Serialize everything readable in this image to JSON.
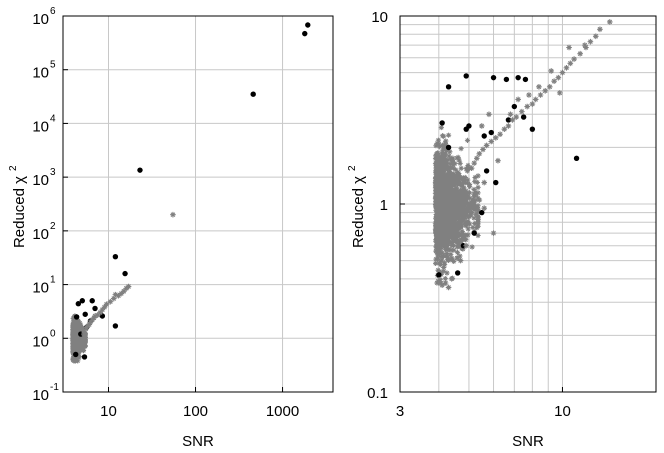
{
  "colors": {
    "dots": "#000000",
    "stars": "#808080",
    "grid": "#c8c8c8",
    "frame": "#000000"
  },
  "chart_data": [
    {
      "type": "scatter",
      "title": "",
      "xlabel": "SNR",
      "ylabel": "Reduced χ",
      "ylabel_superscript": "2",
      "xscale": "log",
      "yscale": "log",
      "xlim": [
        3,
        3800
      ],
      "ylim": [
        0.1,
        1000000
      ],
      "grid": true,
      "xticks": [
        {
          "v": 10,
          "label": "10"
        },
        {
          "v": 100,
          "label": "100"
        },
        {
          "v": 1000,
          "label": "1000"
        }
      ],
      "yticks": [
        {
          "v": 0.1,
          "base": "10",
          "exp": "-1"
        },
        {
          "v": 1,
          "base": "10",
          "exp": "0"
        },
        {
          "v": 10,
          "base": "10",
          "exp": "1"
        },
        {
          "v": 100,
          "base": "10",
          "exp": "2"
        },
        {
          "v": 1000,
          "base": "10",
          "exp": "3"
        },
        {
          "v": 10000,
          "base": "10",
          "exp": "4"
        },
        {
          "v": 100000,
          "base": "10",
          "exp": "5"
        },
        {
          "v": 1000000,
          "base": "10",
          "exp": "6"
        }
      ],
      "series": [
        {
          "marker": "dot",
          "points": [
            [
              1950,
              680000
            ],
            [
              1800,
              470000
            ],
            [
              460,
              35000
            ],
            [
              23,
              1350
            ],
            [
              12,
              33
            ],
            [
              15.5,
              16
            ],
            [
              4.5,
              4.4
            ],
            [
              5.0,
              5.0
            ],
            [
              6.5,
              5.0
            ],
            [
              8.5,
              2.6
            ],
            [
              12,
              1.7
            ],
            [
              7.0,
              3.6
            ],
            [
              4.3,
              2.5
            ],
            [
              5.4,
              2.8
            ],
            [
              4.8,
              1.2
            ],
            [
              5.6,
              1.6
            ],
            [
              6.2,
              2.1
            ],
            [
              4.2,
              0.5
            ],
            [
              5.3,
              0.45
            ]
          ]
        },
        {
          "marker": "star",
          "points": [
            [
              55,
              200
            ],
            [
              17,
              9.2
            ],
            [
              15,
              7.5
            ],
            [
              14,
              6.8
            ],
            [
              13,
              6.2
            ],
            [
              11.5,
              5.5
            ],
            [
              10.5,
              4.8
            ],
            [
              9.5,
              4.3
            ],
            [
              9,
              3.8
            ],
            [
              8.5,
              3.4
            ],
            [
              8,
              3.0
            ],
            [
              7.5,
              2.7
            ],
            [
              7,
              2.6
            ],
            [
              6.8,
              2.4
            ],
            [
              6.5,
              2.2
            ],
            [
              6.2,
              2.0
            ],
            [
              6,
              1.8
            ],
            [
              5.8,
              1.7
            ],
            [
              5.6,
              1.6
            ],
            [
              5.5,
              1.5
            ],
            [
              5.3,
              1.3
            ],
            [
              5.2,
              1.2
            ],
            [
              16,
              8.5
            ],
            [
              12,
              6.5
            ]
          ]
        }
      ],
      "cluster": {
        "xrange": [
          3.9,
          5.4
        ],
        "yrange": [
          0.38,
          2.6
        ]
      }
    },
    {
      "type": "scatter",
      "title": "",
      "xlabel": "SNR",
      "ylabel": "Reduced χ",
      "ylabel_superscript": "2",
      "xscale": "log",
      "yscale": "log",
      "xlim": [
        3,
        20
      ],
      "ylim": [
        0.1,
        10
      ],
      "grid": true,
      "xticks": [
        {
          "v": 3,
          "label": "3"
        },
        {
          "v": 10,
          "label": "10"
        }
      ],
      "yticks": [
        {
          "v": 0.1,
          "label": "0.1"
        },
        {
          "v": 1,
          "label": "1"
        },
        {
          "v": 10,
          "label": "10"
        }
      ],
      "series": [
        {
          "marker": "dot",
          "points": [
            [
              4.9,
              4.8
            ],
            [
              4.3,
              4.2
            ],
            [
              6.6,
              4.6
            ],
            [
              7.2,
              4.7
            ],
            [
              7.6,
              4.6
            ],
            [
              6.0,
              4.7
            ],
            [
              7.0,
              3.3
            ],
            [
              7.5,
              2.9
            ],
            [
              6.7,
              2.8
            ],
            [
              8.0,
              2.5
            ],
            [
              5.9,
              2.4
            ],
            [
              5.6,
              2.3
            ],
            [
              4.1,
              2.7
            ],
            [
              4.9,
              2.5
            ],
            [
              11.1,
              1.75
            ],
            [
              4.0,
              0.42
            ],
            [
              4.6,
              0.43
            ],
            [
              5.2,
              0.7
            ],
            [
              4.8,
              0.6
            ],
            [
              5.5,
              0.9
            ],
            [
              5.0,
              2.6
            ],
            [
              4.3,
              2.0
            ],
            [
              5.7,
              1.5
            ],
            [
              6.1,
              1.3
            ]
          ]
        },
        {
          "marker": "star",
          "points": [
            [
              14.2,
              9.3
            ],
            [
              13.2,
              8.5
            ],
            [
              12.8,
              7.8
            ],
            [
              12.3,
              7.3
            ],
            [
              11.9,
              6.8
            ],
            [
              11.4,
              6.3
            ],
            [
              10.9,
              5.9
            ],
            [
              10.6,
              5.6
            ],
            [
              10.3,
              5.3
            ],
            [
              10.0,
              5.0
            ],
            [
              9.7,
              4.7
            ],
            [
              9.4,
              4.5
            ],
            [
              9.1,
              4.2
            ],
            [
              8.8,
              4.0
            ],
            [
              8.5,
              3.8
            ],
            [
              8.2,
              3.6
            ],
            [
              8.0,
              3.4
            ],
            [
              7.7,
              3.3
            ],
            [
              7.4,
              3.1
            ],
            [
              7.1,
              2.9
            ],
            [
              6.9,
              2.8
            ],
            [
              6.7,
              2.6
            ],
            [
              6.5,
              2.5
            ],
            [
              6.3,
              2.35
            ],
            [
              6.1,
              2.25
            ],
            [
              5.9,
              2.15
            ],
            [
              5.7,
              2.05
            ],
            [
              5.55,
              1.95
            ],
            [
              5.4,
              1.85
            ],
            [
              5.3,
              1.75
            ],
            [
              5.2,
              1.65
            ],
            [
              5.1,
              1.55
            ],
            [
              10.5,
              6.8
            ],
            [
              11.8,
              7.0
            ],
            [
              8.4,
              4.2
            ],
            [
              9.2,
              5.1
            ],
            [
              9.8,
              3.9
            ],
            [
              7.8,
              3.8
            ],
            [
              7.2,
              3.6
            ],
            [
              6.8,
              3.0
            ],
            [
              5.8,
              3.0
            ],
            [
              5.5,
              2.6
            ],
            [
              6.2,
              1.7
            ],
            [
              5.6,
              1.3
            ],
            [
              5.3,
              0.75
            ],
            [
              5.6,
              0.95
            ],
            [
              4.9,
              0.6
            ],
            [
              4.7,
              0.5
            ],
            [
              4.4,
              0.4
            ],
            [
              4.1,
              0.37
            ],
            [
              4.3,
              0.36
            ],
            [
              6.0,
              0.7
            ],
            [
              5.4,
              1.05
            ]
          ]
        }
      ],
      "cluster": {
        "xrange": [
          3.9,
          5.35
        ],
        "yrange": [
          0.38,
          2.55
        ]
      }
    }
  ]
}
